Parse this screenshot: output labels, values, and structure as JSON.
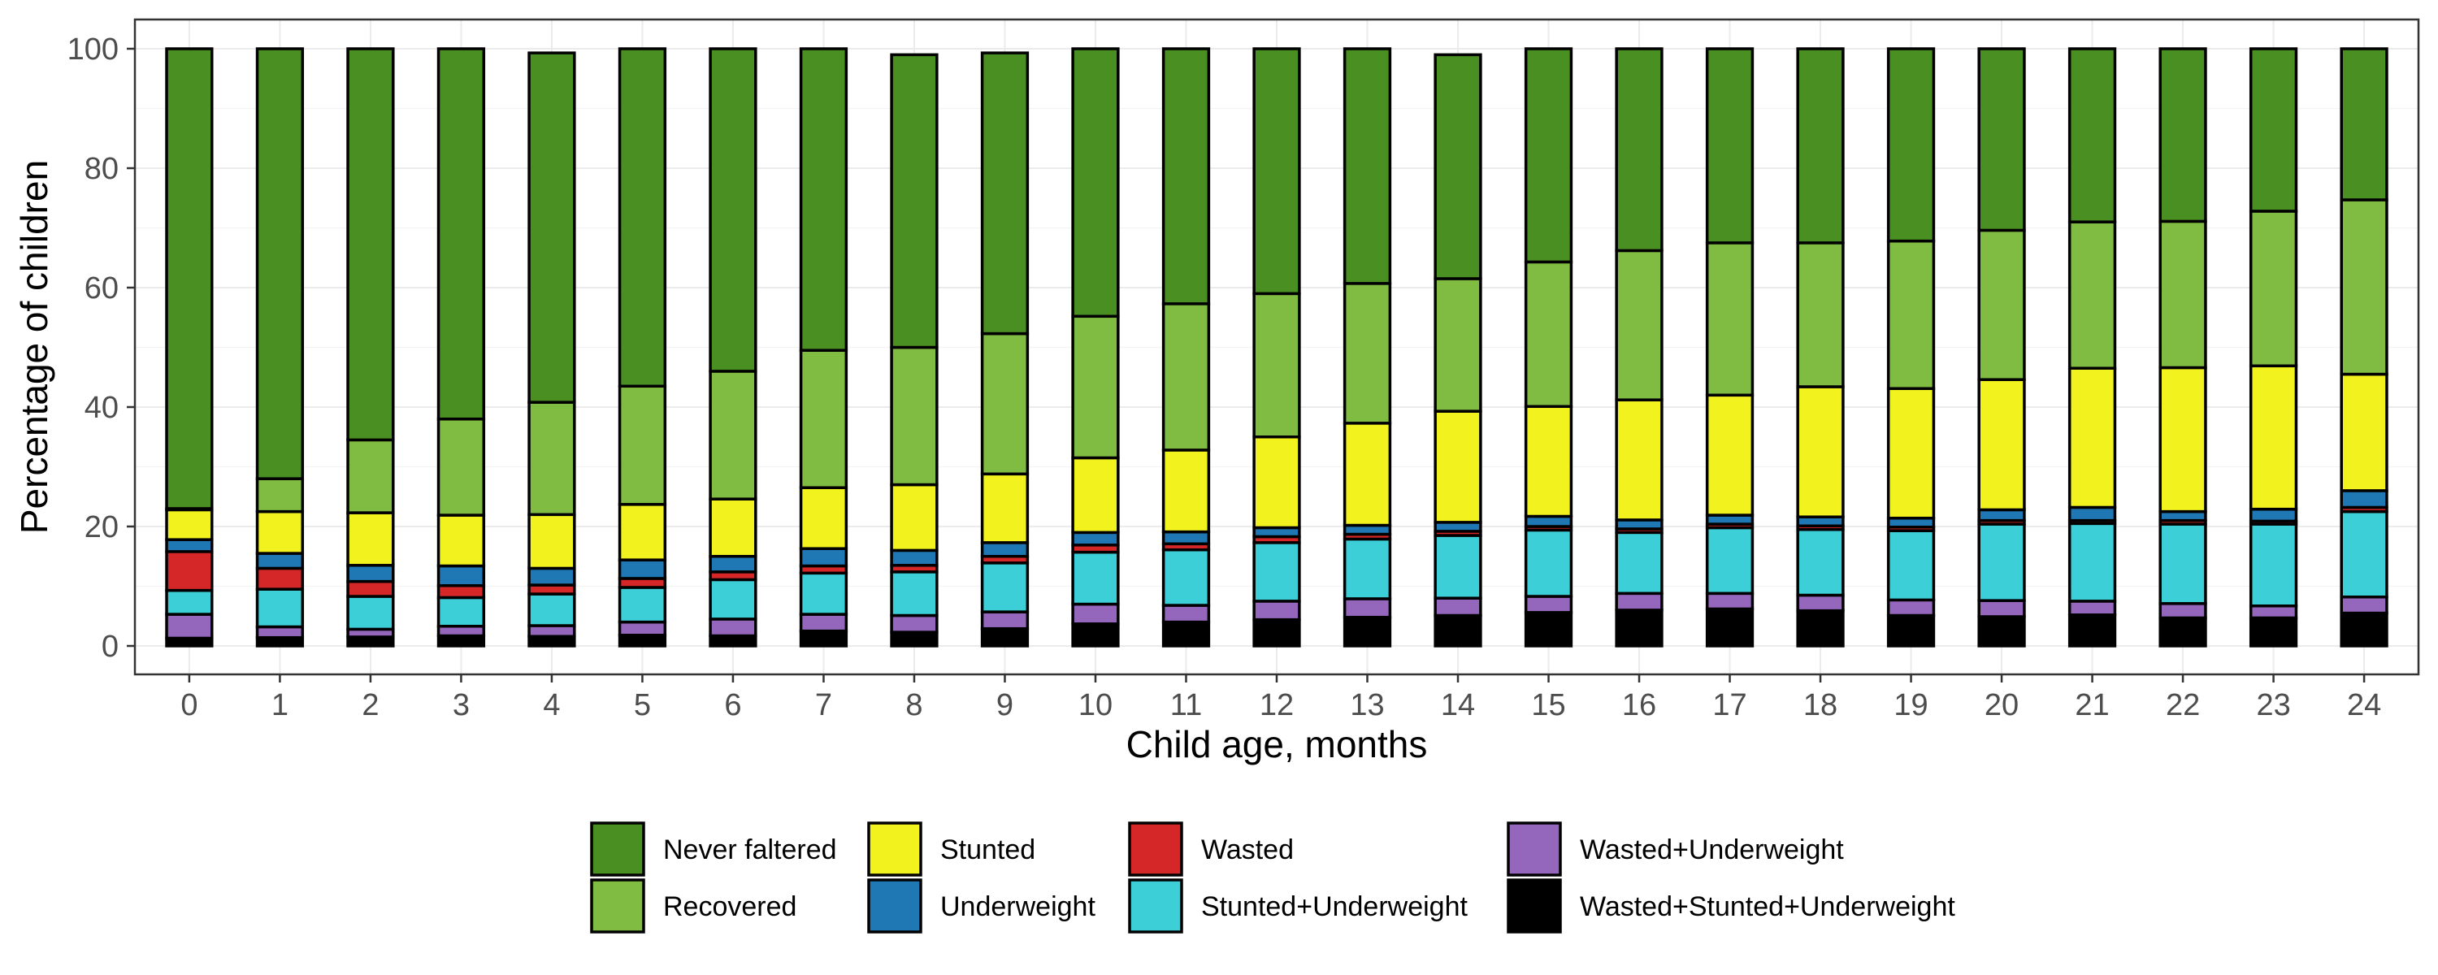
{
  "chart_data": {
    "type": "bar",
    "stacked": true,
    "xlabel": "Child age, months",
    "ylabel": "Percentage of children",
    "ylim": [
      0,
      100
    ],
    "yticks": [
      0,
      20,
      40,
      60,
      80,
      100
    ],
    "grid": true,
    "legend_position": "bottom",
    "categories": [
      "0",
      "1",
      "2",
      "3",
      "4",
      "5",
      "6",
      "7",
      "8",
      "9",
      "10",
      "11",
      "12",
      "13",
      "14",
      "15",
      "16",
      "17",
      "18",
      "19",
      "20",
      "21",
      "22",
      "23",
      "24"
    ],
    "stack_order": [
      "Wasted+Stunted+Underweight",
      "Wasted+Underweight",
      "Stunted+Underweight",
      "Wasted",
      "Underweight",
      "Stunted",
      "Recovered",
      "Never faltered"
    ],
    "series": [
      {
        "name": "Never faltered",
        "color": "#4a8f22",
        "values": [
          77,
          72,
          65.5,
          62,
          58.5,
          56.5,
          54,
          50.5,
          49,
          47,
          44.8,
          42.7,
          41,
          39.3,
          37.5,
          35.7,
          33.8,
          32.5,
          32.5,
          32.2,
          30.4,
          29,
          28.9,
          27.2,
          25.3
        ]
      },
      {
        "name": "Recovered",
        "color": "#7fbc41",
        "values": [
          0.2,
          5.5,
          12.2,
          16.1,
          18.8,
          19.8,
          21.4,
          23,
          23,
          23.5,
          23.7,
          24.5,
          24,
          23.4,
          22.2,
          24.2,
          25,
          25.5,
          24.1,
          24.7,
          25,
          24.5,
          24.5,
          25.9,
          29.2
        ]
      },
      {
        "name": "Stunted",
        "color": "#f2f21f",
        "values": [
          5,
          7,
          8.8,
          8.5,
          9,
          9.3,
          9.6,
          10.2,
          11,
          11.5,
          12.5,
          13.7,
          15.2,
          17.1,
          18.6,
          18.4,
          20.1,
          20.1,
          21.8,
          21.7,
          21.8,
          23.3,
          24.1,
          24,
          19.5
        ]
      },
      {
        "name": "Underweight",
        "color": "#1f78b4",
        "values": [
          2,
          2.5,
          2.7,
          3.3,
          2.8,
          3.1,
          2.6,
          2.9,
          2.5,
          2.3,
          2.1,
          2,
          1.5,
          1.5,
          1.5,
          1.7,
          1.5,
          1.5,
          1.5,
          1.5,
          1.8,
          2.2,
          1.5,
          2,
          2.8
        ]
      },
      {
        "name": "Wasted",
        "color": "#d62728",
        "values": [
          6.5,
          3.5,
          2.5,
          2,
          1.5,
          1.5,
          1.3,
          1.2,
          1.1,
          1.1,
          1.2,
          1,
          1,
          0.8,
          0.7,
          0.6,
          0.6,
          0.6,
          0.6,
          0.6,
          0.6,
          0.5,
          0.6,
          0.5,
          0.7
        ]
      },
      {
        "name": "Stunted+Underweight",
        "color": "#3ccfd8",
        "values": [
          4,
          6.3,
          5.5,
          4.8,
          5.3,
          5.8,
          6.6,
          6.9,
          7.3,
          8.2,
          8.7,
          9.3,
          9.8,
          10,
          10.5,
          11.1,
          10.2,
          11,
          11,
          11.6,
          12.8,
          13,
          13.3,
          13.7,
          14.3
        ]
      },
      {
        "name": "Wasted+Underweight",
        "color": "#9467bd",
        "values": [
          4,
          1.8,
          1.3,
          1.6,
          1.8,
          2.2,
          2.8,
          2.8,
          2.8,
          2.8,
          3.3,
          2.8,
          3.1,
          3.1,
          2.9,
          2.7,
          2.8,
          2.6,
          2.6,
          2.6,
          2.7,
          2.3,
          2.4,
          2,
          2.7
        ]
      },
      {
        "name": "Wasted+Stunted+Underweight",
        "color": "#000000",
        "values": [
          1.3,
          1.4,
          1.5,
          1.7,
          1.6,
          1.8,
          1.7,
          2.5,
          2.3,
          2.9,
          3.7,
          4,
          4.4,
          4.8,
          5.1,
          5.6,
          6,
          6.2,
          5.9,
          5.1,
          4.9,
          5.2,
          4.7,
          4.7,
          5.5
        ]
      }
    ]
  }
}
